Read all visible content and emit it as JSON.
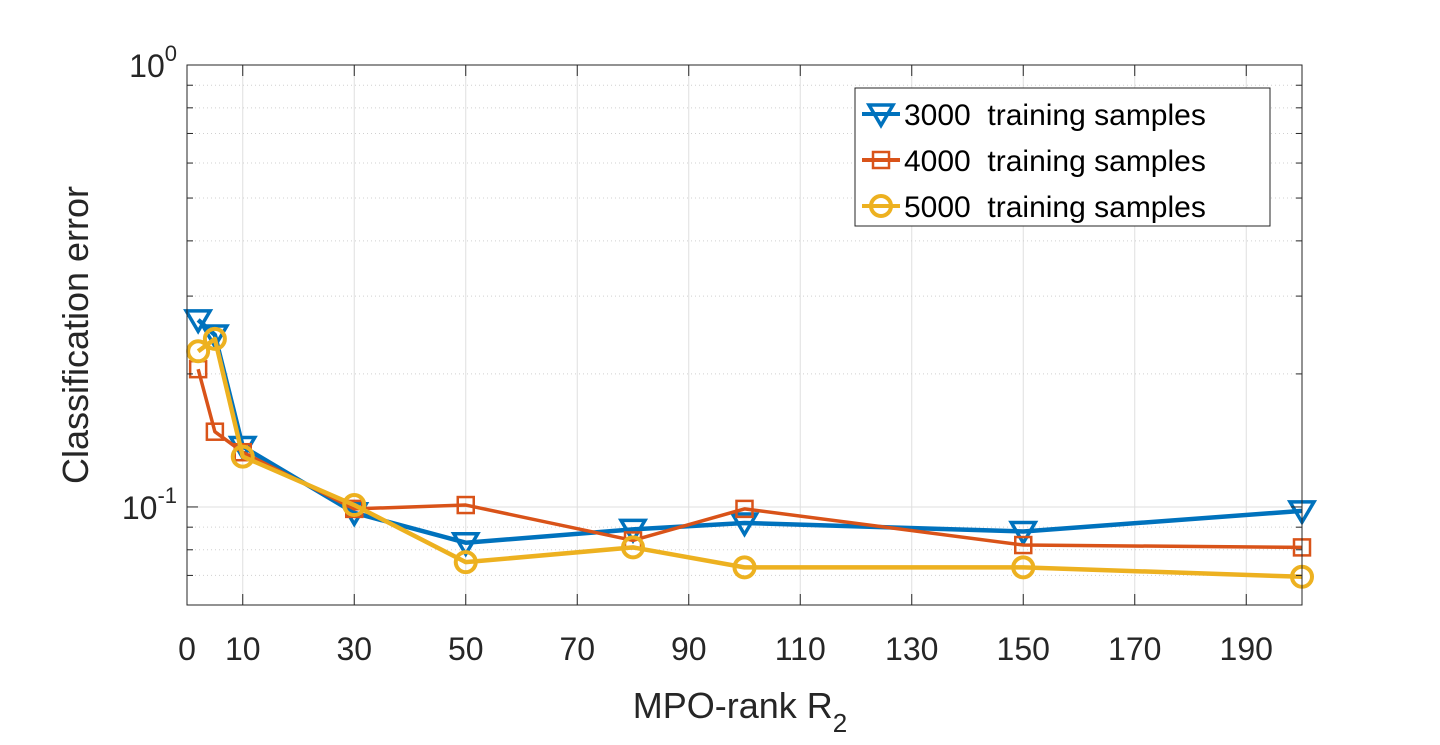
{
  "chart_data": {
    "type": "line",
    "xlabel": "MPO-rank R",
    "xlabel_subscript": "2",
    "ylabel": "Classification error",
    "yscale": "log",
    "xlim": [
      0,
      200
    ],
    "ylim": [
      0.06,
      1
    ],
    "grid": true,
    "legend_position": "top-right",
    "x_ticks": [
      0,
      10,
      30,
      50,
      70,
      90,
      110,
      130,
      150,
      170,
      190
    ],
    "x_tick_labels": [
      "0",
      "10",
      "30",
      "50",
      "70",
      "90",
      "110",
      "130",
      "150",
      "170",
      "190"
    ],
    "y_major_ticks": [
      {
        "value": 0.1,
        "base": "10",
        "exp": "-1"
      },
      {
        "value": 1,
        "base": "10",
        "exp": "0"
      }
    ],
    "y_minor_ticks": [
      0.06,
      0.07,
      0.08,
      0.09,
      0.2,
      0.3,
      0.4,
      0.5,
      0.6,
      0.7,
      0.8,
      0.9
    ],
    "series": [
      {
        "name": "3000  training samples",
        "color": "#0072BD",
        "marker": "triangle-down",
        "x": [
          2,
          5,
          10,
          30,
          50,
          80,
          100,
          150,
          200
        ],
        "values": [
          0.265,
          0.245,
          0.137,
          0.097,
          0.083,
          0.089,
          0.092,
          0.088,
          0.098
        ]
      },
      {
        "name": "4000  training samples",
        "color": "#D95319",
        "marker": "square",
        "x": [
          2,
          5,
          10,
          30,
          50,
          80,
          100,
          150,
          200
        ],
        "values": [
          0.205,
          0.148,
          0.133,
          0.099,
          0.101,
          0.084,
          0.099,
          0.082,
          0.081
        ]
      },
      {
        "name": "5000  training samples",
        "color": "#EDB120",
        "marker": "circle",
        "x": [
          2,
          5,
          10,
          30,
          50,
          80,
          100,
          150,
          200
        ],
        "values": [
          0.225,
          0.24,
          0.13,
          0.101,
          0.075,
          0.081,
          0.073,
          0.073,
          0.0695
        ]
      }
    ]
  }
}
